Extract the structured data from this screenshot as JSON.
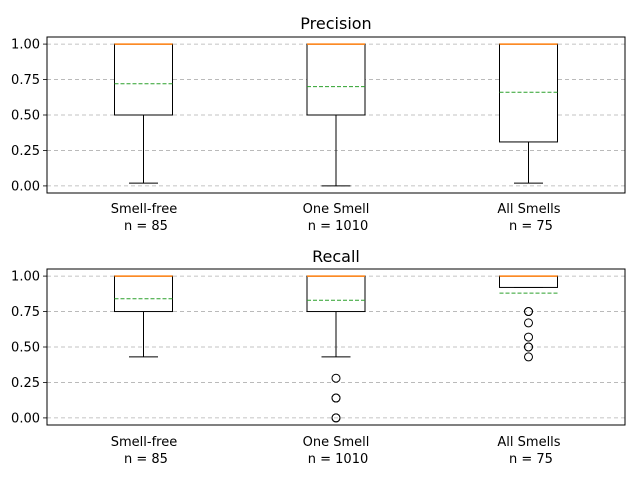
{
  "chart_data": [
    {
      "type": "box",
      "title": "Precision",
      "ylim": [
        -0.05,
        1.05
      ],
      "yticks": [
        "0.00",
        "0.25",
        "0.50",
        "0.75",
        "1.00"
      ],
      "grid": "y-dashed",
      "categories": [
        {
          "label": "Smell-free",
          "n_label": "n = 85"
        },
        {
          "label": "One Smell",
          "n_label": "n = 1010"
        },
        {
          "label": "All Smells",
          "n_label": "n = 75"
        }
      ],
      "boxes": [
        {
          "whisker_low": 0.02,
          "q1": 0.5,
          "median": 1.0,
          "q3": 1.0,
          "whisker_high": 1.0,
          "mean": 0.72,
          "outliers": []
        },
        {
          "whisker_low": 0.0,
          "q1": 0.5,
          "median": 1.0,
          "q3": 1.0,
          "whisker_high": 1.0,
          "mean": 0.7,
          "outliers": []
        },
        {
          "whisker_low": 0.02,
          "q1": 0.31,
          "median": 1.0,
          "q3": 1.0,
          "whisker_high": 1.0,
          "mean": 0.66,
          "outliers": []
        }
      ]
    },
    {
      "type": "box",
      "title": "Recall",
      "ylim": [
        -0.05,
        1.05
      ],
      "yticks": [
        "0.00",
        "0.25",
        "0.50",
        "0.75",
        "1.00"
      ],
      "grid": "y-dashed",
      "categories": [
        {
          "label": "Smell-free",
          "n_label": "n = 85"
        },
        {
          "label": "One Smell",
          "n_label": "n = 1010"
        },
        {
          "label": "All Smells",
          "n_label": "n = 75"
        }
      ],
      "boxes": [
        {
          "whisker_low": 0.43,
          "q1": 0.75,
          "median": 1.0,
          "q3": 1.0,
          "whisker_high": 1.0,
          "mean": 0.84,
          "outliers": []
        },
        {
          "whisker_low": 0.43,
          "q1": 0.75,
          "median": 1.0,
          "q3": 1.0,
          "whisker_high": 1.0,
          "mean": 0.83,
          "outliers": [
            0.28,
            0.14,
            0.14,
            0.0,
            0.0
          ]
        },
        {
          "whisker_low": 0.92,
          "q1": 0.92,
          "median": 1.0,
          "q3": 1.0,
          "whisker_high": 1.0,
          "mean": 0.88,
          "outliers": [
            0.75,
            0.75,
            0.67,
            0.57,
            0.5,
            0.5,
            0.43
          ]
        }
      ]
    }
  ],
  "colors": {
    "median": "#ff7f0e",
    "mean": "#2ca02c",
    "grid": "#b0b0b0",
    "box": "#000000"
  }
}
